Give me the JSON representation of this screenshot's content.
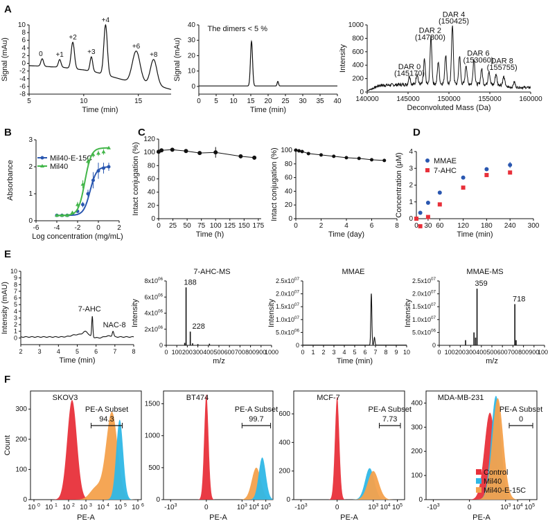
{
  "colors": {
    "control": "#e8303a",
    "mil40": "#2fb7e6",
    "mil40e15c": "#f4a14c",
    "blue": "#2a57b0",
    "green": "#42b649",
    "mmae": "#2a57b0",
    "ahc": "#e8303a",
    "axis": "#111111"
  },
  "chart_data": [
    {
      "id": "A1",
      "panel_letter": "A",
      "type": "line",
      "ylabel": "Signal (mAu)",
      "xlabel": "Time (min)",
      "xlim": [
        5,
        18
      ],
      "ylim": [
        -8,
        10
      ],
      "xticks": [
        "5",
        "10",
        "15"
      ],
      "yticks": [
        "10",
        "8",
        "6",
        "4",
        "2",
        "0",
        "-2",
        "-4",
        "-6",
        "-8"
      ],
      "baseline": [
        [
          5,
          -0.6
        ],
        [
          6,
          -0.7
        ],
        [
          7,
          -0.9
        ],
        [
          8,
          -1.0
        ],
        [
          9,
          -1.4
        ],
        [
          10,
          -1.7
        ],
        [
          11,
          -2.2
        ],
        [
          12,
          -3.0
        ],
        [
          13,
          -3.8
        ],
        [
          14,
          -4.6
        ],
        [
          15,
          -4.6
        ],
        [
          16,
          -5.5
        ],
        [
          17,
          -6.0
        ],
        [
          18,
          -6.8
        ]
      ],
      "peaks": [
        {
          "rt": 6.2,
          "h": 1.2,
          "w": 0.12,
          "label": "0"
        },
        {
          "rt": 7.8,
          "h": 1.0,
          "w": 0.12,
          "label": "+1"
        },
        {
          "rt": 9.0,
          "h": 5.5,
          "w": 0.15,
          "label": "+2"
        },
        {
          "rt": 10.7,
          "h": 1.7,
          "w": 0.12,
          "label": "+3"
        },
        {
          "rt": 12.0,
          "h": 10.0,
          "w": 0.16,
          "label": "+4"
        },
        {
          "rt": 14.8,
          "h": 3.2,
          "w": 0.35,
          "label": "+6"
        },
        {
          "rt": 16.4,
          "h": 1.0,
          "w": 0.3,
          "label": "+8"
        }
      ]
    },
    {
      "id": "A2",
      "type": "line",
      "ylabel": "Signal (mAu)",
      "xlabel": "Time (min)",
      "xlim": [
        0,
        40
      ],
      "ylim": [
        -5,
        40
      ],
      "xticks": [
        "0",
        "5",
        "10",
        "15",
        "20",
        "25",
        "30",
        "35",
        "40"
      ],
      "yticks": [
        "40",
        "30",
        "20",
        "10",
        "0"
      ],
      "annotation": "The dimers < 5 %",
      "baseline": [
        [
          0,
          0
        ],
        [
          40,
          0
        ]
      ],
      "peaks": [
        {
          "rt": 15.2,
          "h": 29,
          "w": 0.3
        },
        {
          "rt": 22.8,
          "h": 3,
          "w": 0.2
        }
      ]
    },
    {
      "id": "A3",
      "type": "line",
      "ylabel": "Intensity",
      "xlabel": "Deconvoluted Mass (Da)",
      "xlim": [
        140000,
        160000
      ],
      "ylim": [
        0,
        1000
      ],
      "xticks": [
        "140000",
        "145000",
        "150000",
        "155000",
        "160000"
      ],
      "yticks": [
        "1000",
        "800",
        "600",
        "400",
        "200",
        "0"
      ],
      "annotations": [
        {
          "line1": "DAR 0",
          "line2": "(145170)",
          "mass": 145170
        },
        {
          "line1": "DAR 2",
          "line2": "(147800)",
          "mass": 147800
        },
        {
          "line1": "DAR 4",
          "line2": "(150425)",
          "mass": 150425
        },
        {
          "line1": "DAR 6",
          "line2": "(153060)",
          "mass": 153060
        },
        {
          "line1": "DAR 8",
          "line2": "(155755)",
          "mass": 155755
        }
      ],
      "peaks": [
        {
          "m": 145170,
          "h": 130
        },
        {
          "m": 146100,
          "h": 160
        },
        {
          "m": 147000,
          "h": 360
        },
        {
          "m": 147800,
          "h": 700
        },
        {
          "m": 148700,
          "h": 330
        },
        {
          "m": 149600,
          "h": 430
        },
        {
          "m": 150425,
          "h": 870
        },
        {
          "m": 151300,
          "h": 420
        },
        {
          "m": 152100,
          "h": 280
        },
        {
          "m": 153060,
          "h": 380
        },
        {
          "m": 154000,
          "h": 230
        },
        {
          "m": 154900,
          "h": 200
        },
        {
          "m": 155755,
          "h": 160
        },
        {
          "m": 156700,
          "h": 120
        },
        {
          "m": 158000,
          "h": 80
        }
      ]
    },
    {
      "id": "B",
      "panel_letter": "B",
      "type": "scatter",
      "ylabel": "Absorbance",
      "xlabel": "Log concentration (mg/mL)",
      "xlim": [
        -6,
        2
      ],
      "ylim": [
        0,
        3
      ],
      "xticks": [
        "-6",
        "-4",
        "-2",
        "0",
        "2"
      ],
      "yticks": [
        "3",
        "2",
        "1",
        "0"
      ],
      "series": [
        {
          "name": "Mil40-E-15C",
          "color": "blue",
          "x": [
            -4.0,
            -3.5,
            -3.0,
            -2.5,
            -2.0,
            -1.5,
            -1.0,
            -0.5,
            0.0,
            0.5,
            1.0
          ],
          "y": [
            0.2,
            0.2,
            0.2,
            0.25,
            0.35,
            0.6,
            1.0,
            1.5,
            1.85,
            1.95,
            2.0
          ],
          "err": [
            0.05,
            0.05,
            0.05,
            0.05,
            0.05,
            0.1,
            0.15,
            0.3,
            0.3,
            0.2,
            0.15
          ]
        },
        {
          "name": "Mil40",
          "color": "green",
          "x": [
            -4.0,
            -3.5,
            -3.0,
            -2.5,
            -2.0,
            -1.5,
            -1.0,
            -0.5,
            0.0,
            0.5,
            1.0
          ],
          "y": [
            0.2,
            0.2,
            0.2,
            0.3,
            0.6,
            1.35,
            2.2,
            2.45,
            2.5,
            2.55,
            2.7
          ],
          "err": [
            0.05,
            0.05,
            0.05,
            0.05,
            0.1,
            0.15,
            0.15,
            0.1,
            0.1,
            0.1,
            0.05
          ]
        }
      ]
    },
    {
      "id": "C1",
      "panel_letter": "C",
      "type": "line",
      "ylabel": "Intact conjugation (%)",
      "xlabel": "Time (h)",
      "xlim": [
        0,
        180
      ],
      "ylim": [
        0,
        120
      ],
      "xticks": [
        "0",
        "25",
        "50",
        "75",
        "100",
        "125",
        "150",
        "175"
      ],
      "yticks": [
        "120",
        "100",
        "80",
        "60",
        "40",
        "20",
        "0"
      ],
      "x": [
        0,
        5,
        24,
        48,
        72,
        100,
        144,
        168
      ],
      "y": [
        101,
        103,
        104,
        102,
        99,
        100,
        94,
        92
      ],
      "err": [
        3,
        2,
        2,
        2,
        2,
        8,
        3,
        3
      ]
    },
    {
      "id": "C2",
      "type": "line",
      "ylabel": "Intact conjugation (%)",
      "xlabel": "Time (day)",
      "xlim": [
        0,
        8
      ],
      "ylim": [
        0,
        100
      ],
      "xticks": [
        "0",
        "2",
        "4",
        "6",
        "8"
      ],
      "yticks": [
        "100",
        "80",
        "60",
        "40",
        "20",
        "0"
      ],
      "x": [
        0,
        0.25,
        0.5,
        1,
        2,
        3,
        4,
        5,
        6,
        7
      ],
      "y": [
        100,
        99,
        98,
        95,
        93,
        91,
        89,
        88,
        86,
        85
      ]
    },
    {
      "id": "D",
      "panel_letter": "D",
      "type": "scatter",
      "ylabel": "Concentration (μM)",
      "xlabel": "Time (min)",
      "xlim": [
        0,
        300
      ],
      "ylim": [
        0,
        4
      ],
      "xticks": [
        "0",
        "30",
        "60",
        "120",
        "180",
        "240",
        "300"
      ],
      "yticks": [
        "4",
        "3",
        "2",
        "1",
        "0"
      ],
      "series": [
        {
          "name": "MMAE",
          "color": "mmae",
          "marker": "circle",
          "x": [
            0,
            10,
            30,
            60,
            120,
            180,
            240
          ],
          "y": [
            0.0,
            0.35,
            0.95,
            1.55,
            2.45,
            2.95,
            3.2
          ]
        },
        {
          "name": "7-AHC",
          "color": "ahc",
          "marker": "square",
          "x": [
            0,
            10,
            30,
            60,
            120,
            180,
            240
          ],
          "y": [
            0.0,
            -0.45,
            0.1,
            0.85,
            1.85,
            2.6,
            2.75
          ]
        }
      ]
    },
    {
      "id": "E1",
      "panel_letter": "E",
      "type": "line",
      "ylabel": "Intensity (mAU)",
      "xlabel": "Time (min)",
      "xlim": [
        2,
        8
      ],
      "ylim": [
        -1,
        10
      ],
      "xticks": [
        "2",
        "3",
        "4",
        "5",
        "6",
        "7",
        "8"
      ],
      "yticks": [
        "10",
        "9",
        "8",
        "7",
        "6",
        "5",
        "4",
        "3",
        "2",
        "1",
        "0"
      ],
      "labels": [
        {
          "text": "7-AHC",
          "x": 5.8
        },
        {
          "text": "NAC-8",
          "x": 6.9
        }
      ]
    },
    {
      "id": "E2",
      "type": "bar",
      "title": "7-AHC-MS",
      "ylabel": "Intensity",
      "xlabel": "m/z",
      "xlim": [
        0,
        1000
      ],
      "ylim": [
        0,
        8000000
      ],
      "xticks": [
        "0",
        "100",
        "200",
        "300",
        "400",
        "500",
        "600",
        "700",
        "800",
        "900",
        "1000"
      ],
      "yticks": [
        "8x10^06",
        "6x10^06",
        "4x10^06",
        "2x10^06",
        "0"
      ],
      "peaks": [
        {
          "mz": 188,
          "h": 7200000,
          "label": "188"
        },
        {
          "mz": 228,
          "h": 1700000,
          "label": "228"
        },
        {
          "mz": 175,
          "h": 300000
        },
        {
          "mz": 250,
          "h": 250000
        },
        {
          "mz": 300,
          "h": 150000
        },
        {
          "mz": 410,
          "h": 200000
        }
      ]
    },
    {
      "id": "E3",
      "type": "line",
      "title": "MMAE",
      "ylabel": "Intensity",
      "xlabel": "Time (min)",
      "xlim": [
        0,
        10
      ],
      "ylim": [
        0,
        25000000
      ],
      "xticks": [
        "0",
        "1",
        "2",
        "3",
        "4",
        "5",
        "6",
        "7",
        "8",
        "9",
        "10"
      ],
      "yticks": [
        "2.5x10^07",
        "2.0x10^07",
        "1.5x10^07",
        "1.0x10^07",
        "5.0x10^06",
        "0"
      ],
      "peaks": [
        {
          "rt": 6.6,
          "h": 20000000,
          "w": 0.05
        },
        {
          "rt": 6.9,
          "h": 3000000,
          "w": 0.05
        }
      ]
    },
    {
      "id": "E4",
      "type": "bar",
      "title": "MMAE-MS",
      "ylabel": "Intensity",
      "xlabel": "m/z",
      "xlim": [
        0,
        1000
      ],
      "ylim": [
        0,
        25000000
      ],
      "xticks": [
        "0",
        "100",
        "200",
        "300",
        "400",
        "500",
        "600",
        "700",
        "800",
        "900",
        "1000"
      ],
      "yticks": [
        "2.5x10^07",
        "2.0x10^07",
        "1.5x10^07",
        "1.0x10^07",
        "5.0x10^06",
        "0"
      ],
      "peaks": [
        {
          "mz": 359,
          "h": 22000000,
          "label": "359"
        },
        {
          "mz": 718,
          "h": 16000000,
          "label": "718"
        },
        {
          "mz": 250,
          "h": 2000000
        },
        {
          "mz": 330,
          "h": 5000000
        },
        {
          "mz": 345,
          "h": 3000000
        },
        {
          "mz": 730,
          "h": 2000000
        }
      ]
    },
    {
      "id": "F1",
      "panel_letter": "F",
      "type": "area",
      "title": "SKOV3",
      "ylabel": "Count",
      "xlabel": "PE-A",
      "ylim": [
        0,
        360
      ],
      "yticks": [
        "300",
        "200",
        "100",
        "0"
      ],
      "axis": "log",
      "gate": {
        "label": "PE-A Subset",
        "value": "94.3",
        "from": 3.3,
        "to": 5.1
      },
      "hist": [
        {
          "s": "control",
          "mu": 2.2,
          "sd": 0.28,
          "h": 330
        },
        {
          "s": "mil40e15c",
          "mu": 4.5,
          "sd": 0.33,
          "h": 290
        },
        {
          "s": "mil40",
          "mu": 4.95,
          "sd": 0.2,
          "h": 265
        }
      ]
    },
    {
      "id": "F2",
      "type": "area",
      "title": "BT474",
      "ylabel": "",
      "xlabel": "PE-A",
      "ylim": [
        0,
        1700
      ],
      "yticks": [
        "1500",
        "1000",
        "500",
        "0"
      ],
      "axis": "biexp",
      "gate": {
        "label": "PE-A Subset",
        "value": "99.7",
        "from": 3.0,
        "to": 5.4
      },
      "hist": [
        {
          "s": "control",
          "mu": 0.0,
          "sd": 0.18,
          "h": 1650
        },
        {
          "s": "mil40e15c",
          "mu": 4.2,
          "sd": 0.38,
          "h": 500
        },
        {
          "s": "mil40",
          "mu": 4.7,
          "sd": 0.3,
          "h": 660
        }
      ]
    },
    {
      "id": "F3",
      "type": "area",
      "title": "MCF-7",
      "ylabel": "",
      "xlabel": "PE-A",
      "ylim": [
        0,
        760
      ],
      "yticks": [
        "600",
        "400",
        "200",
        "0"
      ],
      "axis": "biexp",
      "gate": {
        "label": "PE-A Subset",
        "value": "7.73",
        "from": 3.5,
        "to": 5.8
      },
      "hist": [
        {
          "s": "control",
          "mu": 0.0,
          "sd": 0.18,
          "h": 720
        },
        {
          "s": "mil40",
          "mu": 2.7,
          "sd": 0.38,
          "h": 220
        },
        {
          "s": "mil40e15c",
          "mu": 3.0,
          "sd": 0.45,
          "h": 200
        }
      ]
    },
    {
      "id": "F4",
      "type": "area",
      "title": "MDA-MB-231",
      "ylabel": "",
      "xlabel": "PE-A",
      "ylim": [
        0,
        450
      ],
      "yticks": [
        "400",
        "300",
        "200",
        "100",
        "0"
      ],
      "axis": "biexp",
      "gate": {
        "label": "PE-A Subset",
        "value": "0",
        "from": 3.3,
        "to": 5.5
      },
      "hist": [
        {
          "s": "control",
          "mu": 1.7,
          "sd": 0.45,
          "h": 360
        },
        {
          "s": "mil40",
          "mu": 2.2,
          "sd": 0.4,
          "h": 430
        },
        {
          "s": "mil40e15c",
          "mu": 2.35,
          "sd": 0.45,
          "h": 420
        }
      ],
      "legend": [
        {
          "s": "control",
          "label": "Control"
        },
        {
          "s": "mil40",
          "label": "Mil40"
        },
        {
          "s": "mil40e15c",
          "label": "Mil40-E-15C"
        }
      ]
    }
  ]
}
